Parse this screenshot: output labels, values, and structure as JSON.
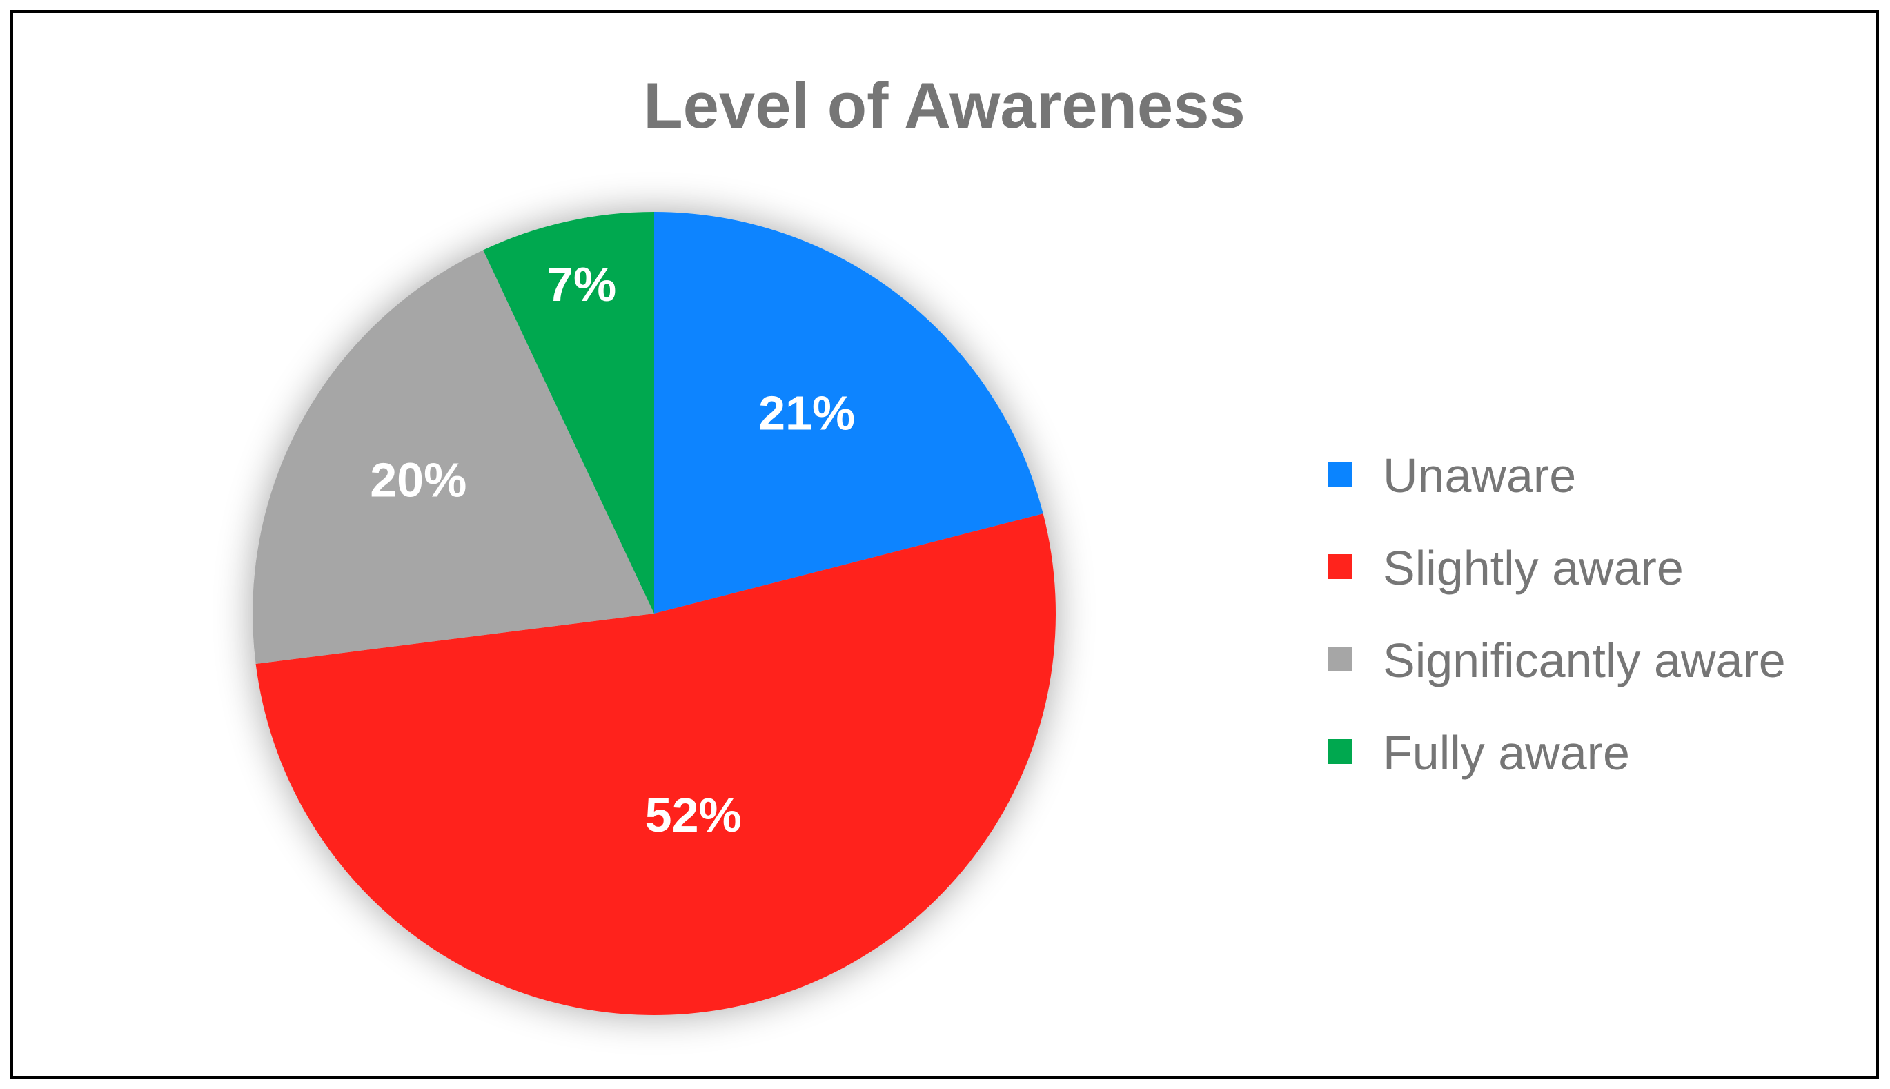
{
  "chart_data": {
    "type": "pie",
    "title": "Level of Awareness",
    "categories": [
      "Unaware",
      "Slightly aware",
      "Significantly aware",
      "Fully aware"
    ],
    "values": [
      21,
      52,
      20,
      7
    ],
    "labels": [
      "21%",
      "52%",
      "20%",
      "7%"
    ],
    "colors": [
      "#0a84ff",
      "#ff231c",
      "#a6a6a6",
      "#00a84f"
    ],
    "legend_position": "right",
    "start_angle_deg": 0,
    "direction": "clockwise"
  }
}
